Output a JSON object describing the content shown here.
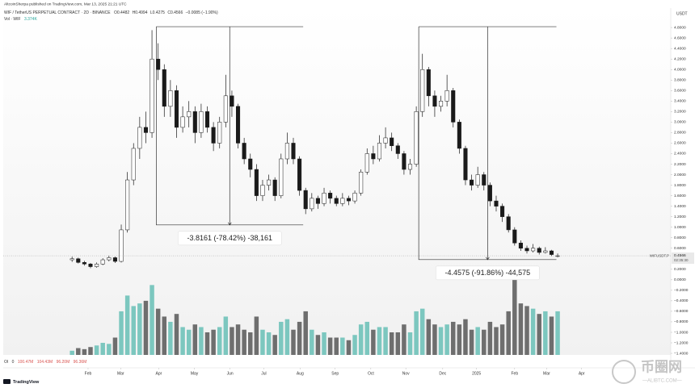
{
  "chart_data": {
    "type": "candlestick",
    "publisher": "AltcoinSherpa published on TradingView.com, Mar 13, 2025 21:21 UTC",
    "title": "WIF / TetherUS PERPETUAL CONTRACT · 2D · BINANCE",
    "legend_ohlc": [
      "O0.4482",
      "H0.4994",
      "L0.4275",
      "C0.4566",
      "−0.0085 (−1.90%)"
    ],
    "volume_label": "Vol · WIF",
    "volume_value": "3.374K",
    "currency": "USDT",
    "symbol_label": "WIFUSDT.P",
    "last_price": 0.4566,
    "countdown": "02:35:30",
    "footer": [
      "OI",
      "0",
      "100.47M",
      "104.43M",
      "96.20M",
      "96.36M"
    ],
    "logo": "TradingView",
    "watermark": [
      "币圈网",
      "—ALIBTC.COM—"
    ],
    "up_color": "#ffffff",
    "down_color": "#1a1a1a",
    "volume_up_color": "#7cc7bf",
    "volume_down_color": "#6e6e6e",
    "ylim": [
      -1.43,
      5.17
    ],
    "xlim": [
      -11.2,
      97.4
    ],
    "yticks": [
      {
        "value": 4.8,
        "label": "4.8000"
      },
      {
        "value": 4.6,
        "label": "4.6000"
      },
      {
        "value": 4.4,
        "label": "4.4000"
      },
      {
        "value": 4.2,
        "label": "4.2000"
      },
      {
        "value": 4.0,
        "label": "4.0000"
      },
      {
        "value": 3.8,
        "label": "3.8000"
      },
      {
        "value": 3.6,
        "label": "3.6000"
      },
      {
        "value": 3.4,
        "label": "3.4000"
      },
      {
        "value": 3.2,
        "label": "3.2000"
      },
      {
        "value": 3.0,
        "label": "3.0000"
      },
      {
        "value": 2.8,
        "label": "2.8000"
      },
      {
        "value": 2.6,
        "label": "2.6000"
      },
      {
        "value": 2.4,
        "label": "2.4000"
      },
      {
        "value": 2.2,
        "label": "2.2000"
      },
      {
        "value": 2.0,
        "label": "2.0000"
      },
      {
        "value": 1.8,
        "label": "1.8000"
      },
      {
        "value": 1.6,
        "label": "1.6000"
      },
      {
        "value": 1.4,
        "label": "1.4000"
      },
      {
        "value": 1.2,
        "label": "1.2000"
      },
      {
        "value": 1.0,
        "label": "1.0000"
      },
      {
        "value": 0.8,
        "label": "0.8000"
      },
      {
        "value": 0.6,
        "label": "0.6000"
      },
      {
        "value": 0.2,
        "label": "0.2000"
      },
      {
        "value": 0,
        "label": "0.0000"
      },
      {
        "value": -0.2,
        "label": "−0.2000"
      },
      {
        "value": -0.4,
        "label": "−0.4000"
      },
      {
        "value": -0.6,
        "label": "−0.6000"
      },
      {
        "value": -0.8,
        "label": "−0.8000"
      },
      {
        "value": -1.0,
        "label": "−1.0000"
      },
      {
        "value": -1.2,
        "label": "−1.2000"
      },
      {
        "value": -1.4,
        "label": "−1.4000"
      }
    ],
    "xticks": [
      {
        "value": 2.6,
        "label": "Feb"
      },
      {
        "value": 7.9,
        "label": "Mar"
      },
      {
        "value": 14.1,
        "label": "Apr"
      },
      {
        "value": 19.9,
        "label": "May"
      },
      {
        "value": 25.7,
        "label": "Jun"
      },
      {
        "value": 31.2,
        "label": "Jul"
      },
      {
        "value": 37.1,
        "label": "Aug"
      },
      {
        "value": 42.8,
        "label": "Sep"
      },
      {
        "value": 48.6,
        "label": "Oct"
      },
      {
        "value": 54.3,
        "label": "Nov"
      },
      {
        "value": 60.3,
        "label": "Dec"
      },
      {
        "value": 65.8,
        "label": "2025"
      },
      {
        "value": 72,
        "label": "Feb"
      },
      {
        "value": 77.2,
        "label": "Mar"
      },
      {
        "value": 82.9,
        "label": "Apr"
      }
    ],
    "candles": [
      [
        0.38,
        0.44,
        0.34,
        0.4
      ],
      [
        0.4,
        0.42,
        0.31,
        0.33
      ],
      [
        0.33,
        0.36,
        0.27,
        0.3
      ],
      [
        0.3,
        0.32,
        0.22,
        0.25
      ],
      [
        0.25,
        0.33,
        0.23,
        0.3
      ],
      [
        0.3,
        0.41,
        0.28,
        0.38
      ],
      [
        0.38,
        0.46,
        0.35,
        0.42
      ],
      [
        0.42,
        0.44,
        0.32,
        0.35
      ],
      [
        0.35,
        1.05,
        0.33,
        0.95
      ],
      [
        0.95,
        2.05,
        0.9,
        1.9
      ],
      [
        1.9,
        2.6,
        1.8,
        2.5
      ],
      [
        2.5,
        3.1,
        2.3,
        2.9
      ],
      [
        2.9,
        3.2,
        2.6,
        2.8
      ],
      [
        2.8,
        4.75,
        2.7,
        4.2
      ],
      [
        4.2,
        4.5,
        3.8,
        4.0
      ],
      [
        4.0,
        4.1,
        3.1,
        3.3
      ],
      [
        3.3,
        3.8,
        3.1,
        3.6
      ],
      [
        3.6,
        3.7,
        2.7,
        2.9
      ],
      [
        2.9,
        3.3,
        2.8,
        3.1
      ],
      [
        3.1,
        3.4,
        2.9,
        3.2
      ],
      [
        3.2,
        3.3,
        2.6,
        2.8
      ],
      [
        2.8,
        3.35,
        2.7,
        3.2
      ],
      [
        3.2,
        3.3,
        2.8,
        2.9
      ],
      [
        2.9,
        3.0,
        2.45,
        2.6
      ],
      [
        2.6,
        3.1,
        2.5,
        3.0
      ],
      [
        3.0,
        3.9,
        2.9,
        3.5
      ],
      [
        3.5,
        3.6,
        3.1,
        3.3
      ],
      [
        3.3,
        3.35,
        2.5,
        2.6
      ],
      [
        2.6,
        2.7,
        2.2,
        2.3
      ],
      [
        2.3,
        2.4,
        1.95,
        2.1
      ],
      [
        2.1,
        2.2,
        1.5,
        1.6
      ],
      [
        1.6,
        1.9,
        1.5,
        1.8
      ],
      [
        1.8,
        2.0,
        1.7,
        1.9
      ],
      [
        1.9,
        1.95,
        1.5,
        1.6
      ],
      [
        1.6,
        2.4,
        1.55,
        2.3
      ],
      [
        2.3,
        2.8,
        2.2,
        2.6
      ],
      [
        2.6,
        2.7,
        2.2,
        2.3
      ],
      [
        2.3,
        2.35,
        1.6,
        1.7
      ],
      [
        1.7,
        1.75,
        1.25,
        1.35
      ],
      [
        1.35,
        1.65,
        1.3,
        1.55
      ],
      [
        1.55,
        1.6,
        1.35,
        1.45
      ],
      [
        1.45,
        1.75,
        1.4,
        1.65
      ],
      [
        1.65,
        1.7,
        1.45,
        1.55
      ],
      [
        1.55,
        1.6,
        1.4,
        1.45
      ],
      [
        1.45,
        1.65,
        1.4,
        1.55
      ],
      [
        1.55,
        1.6,
        1.42,
        1.5
      ],
      [
        1.5,
        1.7,
        1.45,
        1.65
      ],
      [
        1.65,
        2.1,
        1.6,
        2.05
      ],
      [
        2.05,
        2.5,
        2.0,
        2.4
      ],
      [
        2.4,
        2.55,
        2.2,
        2.3
      ],
      [
        2.3,
        2.75,
        2.25,
        2.6
      ],
      [
        2.6,
        2.9,
        2.5,
        2.7
      ],
      [
        2.7,
        2.8,
        2.45,
        2.55
      ],
      [
        2.55,
        2.6,
        2.3,
        2.4
      ],
      [
        2.4,
        2.45,
        2.0,
        2.1
      ],
      [
        2.1,
        2.3,
        2.0,
        2.2
      ],
      [
        2.2,
        3.3,
        2.15,
        3.2
      ],
      [
        3.2,
        4.3,
        3.1,
        4.0
      ],
      [
        4.0,
        4.05,
        3.3,
        3.5
      ],
      [
        3.5,
        3.6,
        3.1,
        3.3
      ],
      [
        3.3,
        3.5,
        3.2,
        3.4
      ],
      [
        3.4,
        3.9,
        3.3,
        3.6
      ],
      [
        3.6,
        3.65,
        2.9,
        3.0
      ],
      [
        3.0,
        3.05,
        2.4,
        2.5
      ],
      [
        2.5,
        2.55,
        1.8,
        1.9
      ],
      [
        1.9,
        2.0,
        1.7,
        1.8
      ],
      [
        1.8,
        2.15,
        1.75,
        2.0
      ],
      [
        2.0,
        2.05,
        1.7,
        1.8
      ],
      [
        1.8,
        1.85,
        1.4,
        1.5
      ],
      [
        1.5,
        1.6,
        1.3,
        1.4
      ],
      [
        1.4,
        1.45,
        1.1,
        1.2
      ],
      [
        1.2,
        1.25,
        0.9,
        0.95
      ],
      [
        0.95,
        1.0,
        0.65,
        0.7
      ],
      [
        0.7,
        0.75,
        0.55,
        0.6
      ],
      [
        0.6,
        0.65,
        0.5,
        0.55
      ],
      [
        0.55,
        0.68,
        0.52,
        0.6
      ],
      [
        0.6,
        0.63,
        0.48,
        0.52
      ],
      [
        0.52,
        0.62,
        0.5,
        0.55
      ],
      [
        0.55,
        0.57,
        0.45,
        0.48
      ],
      [
        0.4482,
        0.4994,
        0.4275,
        0.4566
      ]
    ],
    "volume": [
      -1.35,
      -1.3,
      -1.32,
      -1.28,
      -1.25,
      -1.2,
      -1.22,
      -1.1,
      -0.6,
      -0.3,
      -0.5,
      -0.45,
      -0.4,
      -0.1,
      -0.55,
      -0.7,
      -0.8,
      -0.65,
      -0.9,
      -0.95,
      -0.85,
      -0.9,
      -1.0,
      -0.95,
      -0.9,
      -0.7,
      -0.9,
      -0.85,
      -0.95,
      -1.0,
      -0.7,
      -0.95,
      -1.0,
      -1.05,
      -0.8,
      -0.75,
      -0.95,
      -0.8,
      -0.6,
      -0.95,
      -1.05,
      -1.0,
      -1.1,
      -1.1,
      -1.1,
      -1.15,
      -1.05,
      -0.85,
      -0.8,
      -0.95,
      -0.9,
      -0.9,
      -1.0,
      -1.0,
      -0.85,
      -1.0,
      -0.6,
      -0.55,
      -0.75,
      -0.85,
      -0.9,
      -0.85,
      -0.8,
      -0.85,
      -0.75,
      -0.95,
      -0.9,
      -0.95,
      -0.8,
      -0.9,
      -0.85,
      -0.6,
      0.1,
      -0.45,
      -0.5,
      -0.55,
      -0.65,
      -0.6,
      -0.7,
      -0.6
    ],
    "annotations": [
      {
        "text": "-3.8161 (-78.42%) -38,161",
        "x_range": [
          13.7,
          37.6
        ],
        "y_range": [
          4.816,
          1.044
        ]
      },
      {
        "text": "-4.4575 (-91.86%) -44,575",
        "x_range": [
          56.4,
          78.8
        ],
        "y_range": [
          4.816,
          0.384
        ]
      }
    ]
  }
}
